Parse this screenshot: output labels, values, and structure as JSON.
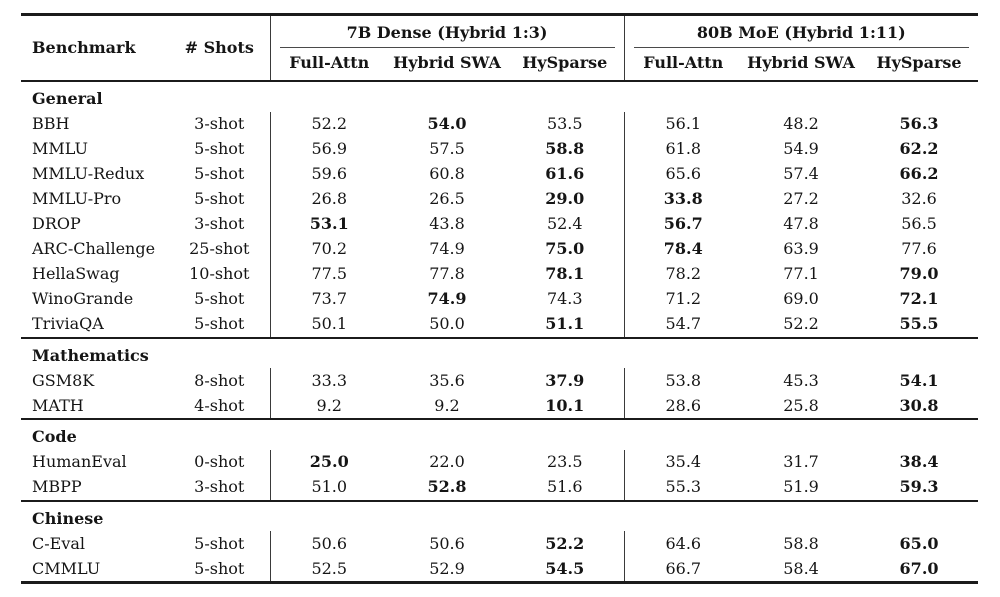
{
  "colors": {
    "background": "#ffffff",
    "text": "#151515",
    "heavy_rule": "#1b1b1b",
    "light_rule": "#4a4a4a",
    "vertical_bar": "#3a3a3a"
  },
  "table": {
    "header": {
      "benchmark": "Benchmark",
      "shots": "# Shots",
      "groups": [
        {
          "label": "7B Dense (Hybrid 1:3)",
          "columns": [
            "Full-Attn",
            "Hybrid SWA",
            "HySparse"
          ]
        },
        {
          "label": "80B MoE (Hybrid 1:11)",
          "columns": [
            "Full-Attn",
            "Hybrid SWA",
            "HySparse"
          ]
        }
      ]
    },
    "sections": [
      {
        "title": "General",
        "rows": [
          {
            "benchmark": "BBH",
            "shots": "3-shot",
            "values": [
              "52.2",
              "54.0",
              "53.5",
              "56.1",
              "48.2",
              "56.3"
            ],
            "bold": [
              false,
              true,
              false,
              false,
              false,
              true
            ]
          },
          {
            "benchmark": "MMLU",
            "shots": "5-shot",
            "values": [
              "56.9",
              "57.5",
              "58.8",
              "61.8",
              "54.9",
              "62.2"
            ],
            "bold": [
              false,
              false,
              true,
              false,
              false,
              true
            ]
          },
          {
            "benchmark": "MMLU-Redux",
            "shots": "5-shot",
            "values": [
              "59.6",
              "60.8",
              "61.6",
              "65.6",
              "57.4",
              "66.2"
            ],
            "bold": [
              false,
              false,
              true,
              false,
              false,
              true
            ]
          },
          {
            "benchmark": "MMLU-Pro",
            "shots": "5-shot",
            "values": [
              "26.8",
              "26.5",
              "29.0",
              "33.8",
              "27.2",
              "32.6"
            ],
            "bold": [
              false,
              false,
              true,
              true,
              false,
              false
            ]
          },
          {
            "benchmark": "DROP",
            "shots": "3-shot",
            "values": [
              "53.1",
              "43.8",
              "52.4",
              "56.7",
              "47.8",
              "56.5"
            ],
            "bold": [
              true,
              false,
              false,
              true,
              false,
              false
            ]
          },
          {
            "benchmark": "ARC-Challenge",
            "shots": "25-shot",
            "values": [
              "70.2",
              "74.9",
              "75.0",
              "78.4",
              "63.9",
              "77.6"
            ],
            "bold": [
              false,
              false,
              true,
              true,
              false,
              false
            ]
          },
          {
            "benchmark": "HellaSwag",
            "shots": "10-shot",
            "values": [
              "77.5",
              "77.8",
              "78.1",
              "78.2",
              "77.1",
              "79.0"
            ],
            "bold": [
              false,
              false,
              true,
              false,
              false,
              true
            ]
          },
          {
            "benchmark": "WinoGrande",
            "shots": "5-shot",
            "values": [
              "73.7",
              "74.9",
              "74.3",
              "71.2",
              "69.0",
              "72.1"
            ],
            "bold": [
              false,
              true,
              false,
              false,
              false,
              true
            ]
          },
          {
            "benchmark": "TriviaQA",
            "shots": "5-shot",
            "values": [
              "50.1",
              "50.0",
              "51.1",
              "54.7",
              "52.2",
              "55.5"
            ],
            "bold": [
              false,
              false,
              true,
              false,
              false,
              true
            ]
          }
        ]
      },
      {
        "title": "Mathematics",
        "rows": [
          {
            "benchmark": "GSM8K",
            "shots": "8-shot",
            "values": [
              "33.3",
              "35.6",
              "37.9",
              "53.8",
              "45.3",
              "54.1"
            ],
            "bold": [
              false,
              false,
              true,
              false,
              false,
              true
            ]
          },
          {
            "benchmark": "MATH",
            "shots": "4-shot",
            "values": [
              "9.2",
              "9.2",
              "10.1",
              "28.6",
              "25.8",
              "30.8"
            ],
            "bold": [
              false,
              false,
              true,
              false,
              false,
              true
            ]
          }
        ]
      },
      {
        "title": "Code",
        "rows": [
          {
            "benchmark": "HumanEval",
            "shots": "0-shot",
            "values": [
              "25.0",
              "22.0",
              "23.5",
              "35.4",
              "31.7",
              "38.4"
            ],
            "bold": [
              true,
              false,
              false,
              false,
              false,
              true
            ]
          },
          {
            "benchmark": "MBPP",
            "shots": "3-shot",
            "values": [
              "51.0",
              "52.8",
              "51.6",
              "55.3",
              "51.9",
              "59.3"
            ],
            "bold": [
              false,
              true,
              false,
              false,
              false,
              true
            ]
          }
        ]
      },
      {
        "title": "Chinese",
        "rows": [
          {
            "benchmark": "C-Eval",
            "shots": "5-shot",
            "values": [
              "50.6",
              "50.6",
              "52.2",
              "64.6",
              "58.8",
              "65.0"
            ],
            "bold": [
              false,
              false,
              true,
              false,
              false,
              true
            ]
          },
          {
            "benchmark": "CMMLU",
            "shots": "5-shot",
            "values": [
              "52.5",
              "52.9",
              "54.5",
              "66.7",
              "58.4",
              "67.0"
            ],
            "bold": [
              false,
              false,
              true,
              false,
              false,
              true
            ]
          }
        ]
      }
    ]
  }
}
